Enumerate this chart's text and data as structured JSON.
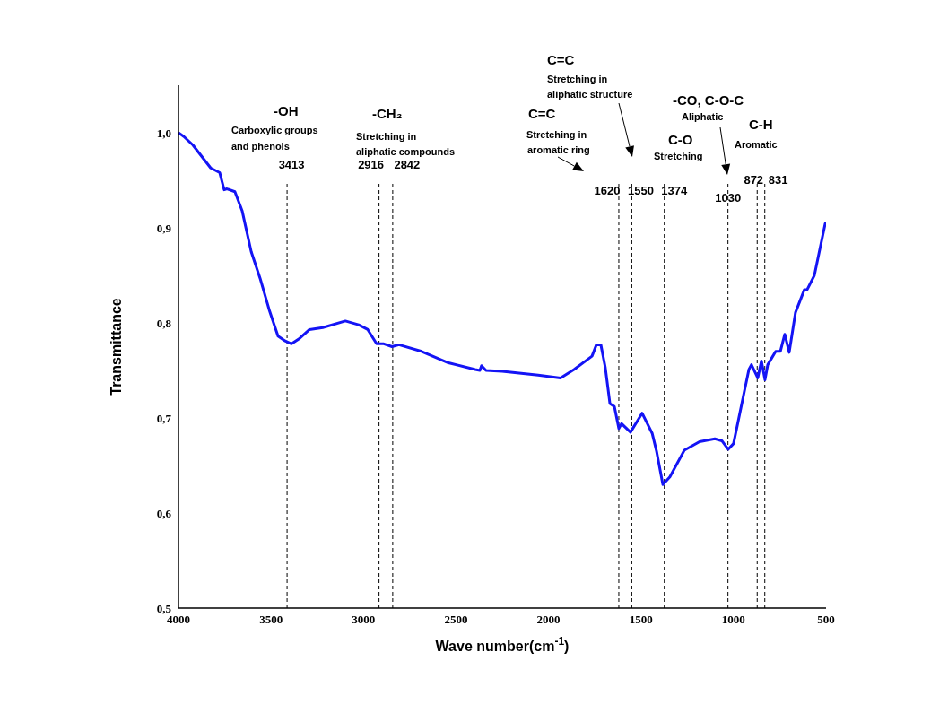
{
  "chart_data": {
    "type": "line",
    "xlabel": "Wave number(cm$^{-1}$)",
    "ylabel": "Transmittance",
    "xlim": [
      4000,
      500
    ],
    "ylim": [
      0.5,
      1.05
    ],
    "xticks": [
      4000,
      3500,
      3000,
      2500,
      2000,
      1500,
      1000,
      500
    ],
    "yticks": [
      {
        "value": 0.5,
        "label": "0,5"
      },
      {
        "value": 0.6,
        "label": "0,6"
      },
      {
        "value": 0.7,
        "label": "0,7"
      },
      {
        "value": 0.8,
        "label": "0,8"
      },
      {
        "value": 0.9,
        "label": "0,9"
      },
      {
        "value": 1.0,
        "label": "1,0"
      }
    ],
    "grid": false,
    "legend": false,
    "marker": "none",
    "line_style": "solid",
    "series": [
      {
        "color": "#1414f5",
        "x": [
          4000,
          3971,
          3922,
          3874,
          3826,
          3777,
          3753,
          3738,
          3695,
          3656,
          3607,
          3559,
          3510,
          3462,
          3423,
          3389,
          3350,
          3292,
          3220,
          3098,
          3026,
          2977,
          2929,
          2890,
          2846,
          2808,
          2686,
          2541,
          2396,
          2371,
          2362,
          2338,
          2250,
          2056,
          1935,
          1862,
          1765,
          1741,
          1717,
          1693,
          1668,
          1644,
          1620,
          1605,
          1557,
          1494,
          1440,
          1416,
          1382,
          1344,
          1266,
          1184,
          1101,
          1063,
          1029,
          1000,
          917,
          903,
          869,
          849,
          830,
          815,
          772,
          747,
          723,
          699,
          665,
          617,
          602,
          563,
          505,
          500
        ],
        "values": [
          1.0,
          0.996,
          0.987,
          0.975,
          0.963,
          0.958,
          0.94,
          0.941,
          0.938,
          0.918,
          0.875,
          0.847,
          0.814,
          0.786,
          0.781,
          0.778,
          0.783,
          0.793,
          0.795,
          0.802,
          0.798,
          0.793,
          0.778,
          0.778,
          0.775,
          0.777,
          0.77,
          0.758,
          0.751,
          0.75,
          0.755,
          0.75,
          0.749,
          0.745,
          0.742,
          0.751,
          0.765,
          0.777,
          0.777,
          0.753,
          0.715,
          0.712,
          0.689,
          0.694,
          0.685,
          0.705,
          0.684,
          0.665,
          0.63,
          0.638,
          0.666,
          0.675,
          0.678,
          0.676,
          0.667,
          0.673,
          0.751,
          0.756,
          0.742,
          0.76,
          0.74,
          0.756,
          0.77,
          0.77,
          0.788,
          0.769,
          0.811,
          0.835,
          0.835,
          0.85,
          0.904,
          0.906
        ]
      }
    ],
    "ref_lines": [
      {
        "axis": "x",
        "value": 3413,
        "label": "3413",
        "color": "#000000",
        "line_style": "dashed"
      },
      {
        "axis": "x",
        "value": 2916,
        "label": "2916",
        "color": "#000000",
        "line_style": "dashed"
      },
      {
        "axis": "x",
        "value": 2842,
        "label": "2842",
        "color": "#000000",
        "line_style": "dashed"
      },
      {
        "axis": "x",
        "value": 1620,
        "label": "1620",
        "color": "#000000",
        "line_style": "dashed"
      },
      {
        "axis": "x",
        "value": 1550,
        "label": "1550",
        "color": "#000000",
        "line_style": "dashed"
      },
      {
        "axis": "x",
        "value": 1374,
        "label": "1374",
        "color": "#000000",
        "line_style": "dashed"
      },
      {
        "axis": "x",
        "value": 1030,
        "label": "1030",
        "color": "#000000",
        "line_style": "dashed"
      },
      {
        "axis": "x",
        "value": 872,
        "label": "872",
        "color": "#000000",
        "line_style": "dashed"
      },
      {
        "axis": "x",
        "value": 831,
        "label": "831",
        "color": "#000000",
        "line_style": "dashed"
      }
    ],
    "annotations": [
      "-OH",
      "Carboxylic groups",
      "and phenols",
      "-CH₂",
      "Stretching in",
      "aliphatic compounds",
      "C=C",
      "Stretching in",
      "aliphatic structure",
      "C=C",
      "Stretching in",
      "aromatic ring",
      "C-O",
      "Stretching",
      "-CO, C-O-C",
      "Aliphatic",
      "C-H",
      "Aromatic"
    ]
  }
}
